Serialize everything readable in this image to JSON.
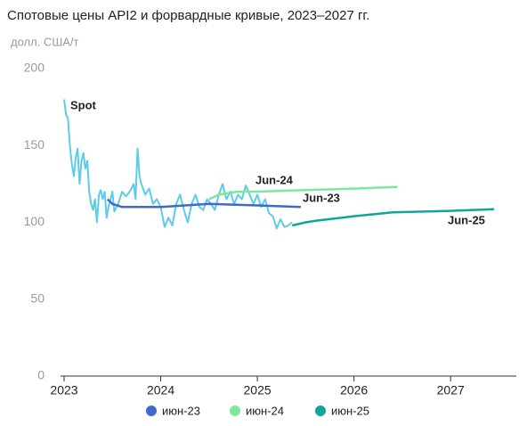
{
  "chart_data": {
    "type": "line",
    "title": "Спотовые цены API2 и форвардные кривые, 2023–2027 гг.",
    "y_label": "долл. США/т",
    "xlim": [
      2023,
      2027.68
    ],
    "xticks": [
      2023,
      2024,
      2025,
      2026,
      2027
    ],
    "ylim": [
      0,
      200
    ],
    "yticks": [
      0,
      50,
      100,
      150,
      200
    ],
    "annotations": [
      "Spot",
      "Jun-24",
      "Jun-23",
      "Jun-25"
    ],
    "spot": {
      "color": "#5ccce8",
      "x": [
        2023.0,
        2023.02,
        2023.04,
        2023.06,
        2023.08,
        2023.1,
        2023.12,
        2023.14,
        2023.16,
        2023.18,
        2023.2,
        2023.22,
        2023.24,
        2023.26,
        2023.28,
        2023.3,
        2023.32,
        2023.34,
        2023.36,
        2023.38,
        2023.4,
        2023.42,
        2023.44,
        2023.46,
        2023.48,
        2023.5,
        2023.52,
        2023.56,
        2023.6,
        2023.64,
        2023.68,
        2023.72,
        2023.74,
        2023.76,
        2023.78,
        2023.8,
        2023.84,
        2023.88,
        2023.92,
        2023.96,
        2024.0,
        2024.04,
        2024.08,
        2024.12,
        2024.16,
        2024.2,
        2024.24,
        2024.28,
        2024.32,
        2024.36,
        2024.4,
        2024.44,
        2024.48,
        2024.52,
        2024.56,
        2024.6,
        2024.64,
        2024.68,
        2024.72,
        2024.76,
        2024.8,
        2024.84,
        2024.88,
        2024.92,
        2024.96,
        2025.0,
        2025.04,
        2025.08,
        2025.12,
        2025.16,
        2025.2,
        2025.24,
        2025.28,
        2025.32,
        2025.36
      ],
      "values": [
        180,
        170,
        168,
        150,
        138,
        130,
        142,
        148,
        125,
        140,
        145,
        135,
        140,
        120,
        112,
        108,
        115,
        100,
        118,
        121,
        115,
        120,
        103,
        110,
        115,
        120,
        107,
        112,
        120,
        117,
        120,
        125,
        115,
        148,
        130,
        125,
        118,
        122,
        112,
        115,
        110,
        97,
        103,
        98,
        112,
        118,
        108,
        100,
        112,
        118,
        110,
        108,
        115,
        112,
        108,
        118,
        125,
        115,
        120,
        112,
        118,
        115,
        124,
        118,
        112,
        118,
        110,
        115,
        106,
        104,
        96,
        102,
        97,
        98,
        100
      ]
    },
    "series": [
      {
        "name": "июн-23",
        "color": "#4169c8",
        "x": [
          2023.45,
          2023.5,
          2023.6,
          2024.0,
          2024.5,
          2025.0,
          2025.45
        ],
        "values": [
          115,
          112,
          110,
          110,
          112,
          111,
          110
        ]
      },
      {
        "name": "июн-24",
        "color": "#7de89a",
        "x": [
          2024.5,
          2024.6,
          2024.8,
          2025.0,
          2025.5,
          2026.0,
          2026.45
        ],
        "values": [
          115,
          118,
          120,
          120,
          121,
          122,
          123
        ]
      },
      {
        "name": "июн-25",
        "color": "#10a596",
        "x": [
          2025.36,
          2025.5,
          2025.6,
          2026.0,
          2026.4,
          2027.0,
          2027.45
        ],
        "values": [
          98,
          100,
          101,
          104,
          106.5,
          107.5,
          108.5
        ]
      }
    ]
  }
}
